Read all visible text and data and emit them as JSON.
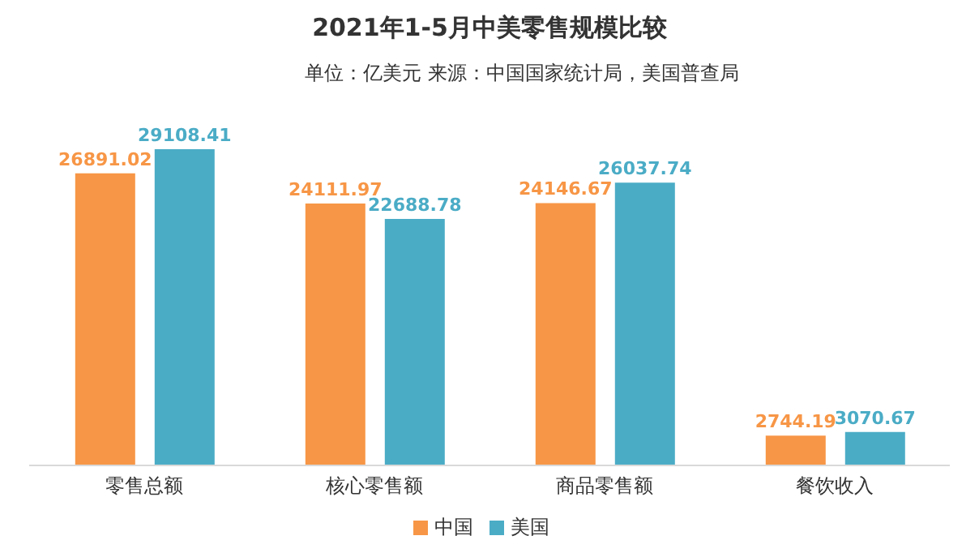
{
  "chart_data": {
    "type": "bar",
    "title": "2021年1-5月中美零售规模比较",
    "subtitle": "单位：亿美元 来源：中国国家统计局，美国普查局",
    "categories": [
      "零售总额",
      "核心零售额",
      "商品零售额",
      "餐饮收入"
    ],
    "series": [
      {
        "name": "中国",
        "color": "#f79646",
        "values": [
          26891.02,
          24111.97,
          24146.67,
          2744.19
        ]
      },
      {
        "name": "美国",
        "color": "#4bacc6",
        "values": [
          29108.41,
          22688.78,
          26037.74,
          3070.67
        ]
      }
    ],
    "data_labels": true,
    "legend": "bottom",
    "grid": false
  }
}
